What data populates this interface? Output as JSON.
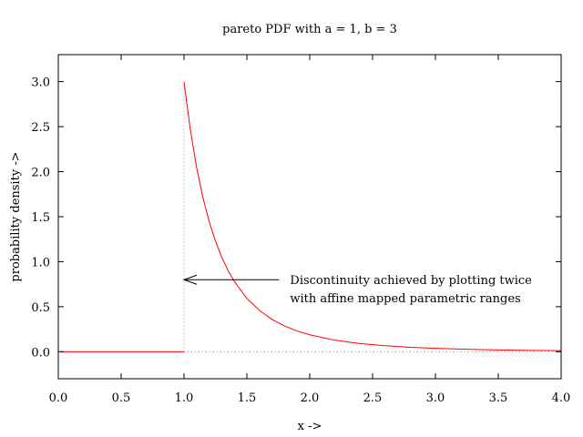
{
  "chart_data": {
    "type": "line",
    "title": "pareto PDF with a = 1, b = 3",
    "xlabel": "x ->",
    "ylabel": "probability density ->",
    "xlim": [
      0.0,
      4.0
    ],
    "ylim": [
      -0.3,
      3.3
    ],
    "xticks": [
      0.0,
      0.5,
      1.0,
      1.5,
      2.0,
      2.5,
      3.0,
      3.5,
      4.0
    ],
    "xtick_labels": [
      "0.0",
      "0.5",
      "1.0",
      "1.5",
      "2.0",
      "2.5",
      "3.0",
      "3.5",
      "4.0"
    ],
    "yticks": [
      0.0,
      0.5,
      1.0,
      1.5,
      2.0,
      2.5,
      3.0
    ],
    "ytick_labels": [
      "0.0",
      "0.5",
      "1.0",
      "1.5",
      "2.0",
      "2.5",
      "3.0"
    ],
    "grid": false,
    "legend": "none",
    "series": [
      {
        "color": "#ff0000",
        "style": "solid",
        "segments": [
          {
            "x": [
              0.0,
              1.0
            ],
            "y": [
              0.0,
              0.0
            ]
          },
          {
            "x": [
              1.0,
              1.05,
              1.1,
              1.15,
              1.2,
              1.25,
              1.3,
              1.35,
              1.4,
              1.5,
              1.6,
              1.7,
              1.8,
              1.9,
              2.0,
              2.2,
              2.4,
              2.6,
              2.8,
              3.0,
              3.25,
              3.5,
              3.75,
              4.0
            ],
            "y": [
              3.0,
              2.468,
              2.049,
              1.715,
              1.447,
              1.229,
              1.05,
              0.903,
              0.781,
              0.593,
              0.458,
              0.359,
              0.286,
              0.23,
              0.1875,
              0.128,
              0.09,
              0.066,
              0.049,
              0.037,
              0.027,
              0.02,
              0.015,
              0.0117
            ]
          }
        ]
      },
      {
        "color": "#888888",
        "style": "dotted",
        "segments": [
          {
            "x": [
              1.0,
              1.0
            ],
            "y": [
              0.0,
              3.0
            ]
          },
          {
            "x": [
              1.0,
              4.0
            ],
            "y": [
              0.0,
              0.0
            ]
          }
        ]
      }
    ],
    "annotations": [
      {
        "lines": [
          "Discontinuity achieved by plotting twice",
          "with affine mapped parametric ranges"
        ],
        "arrow_from": [
          1.8,
          0.8
        ],
        "arrow_to": [
          1.0,
          0.8
        ]
      }
    ]
  }
}
